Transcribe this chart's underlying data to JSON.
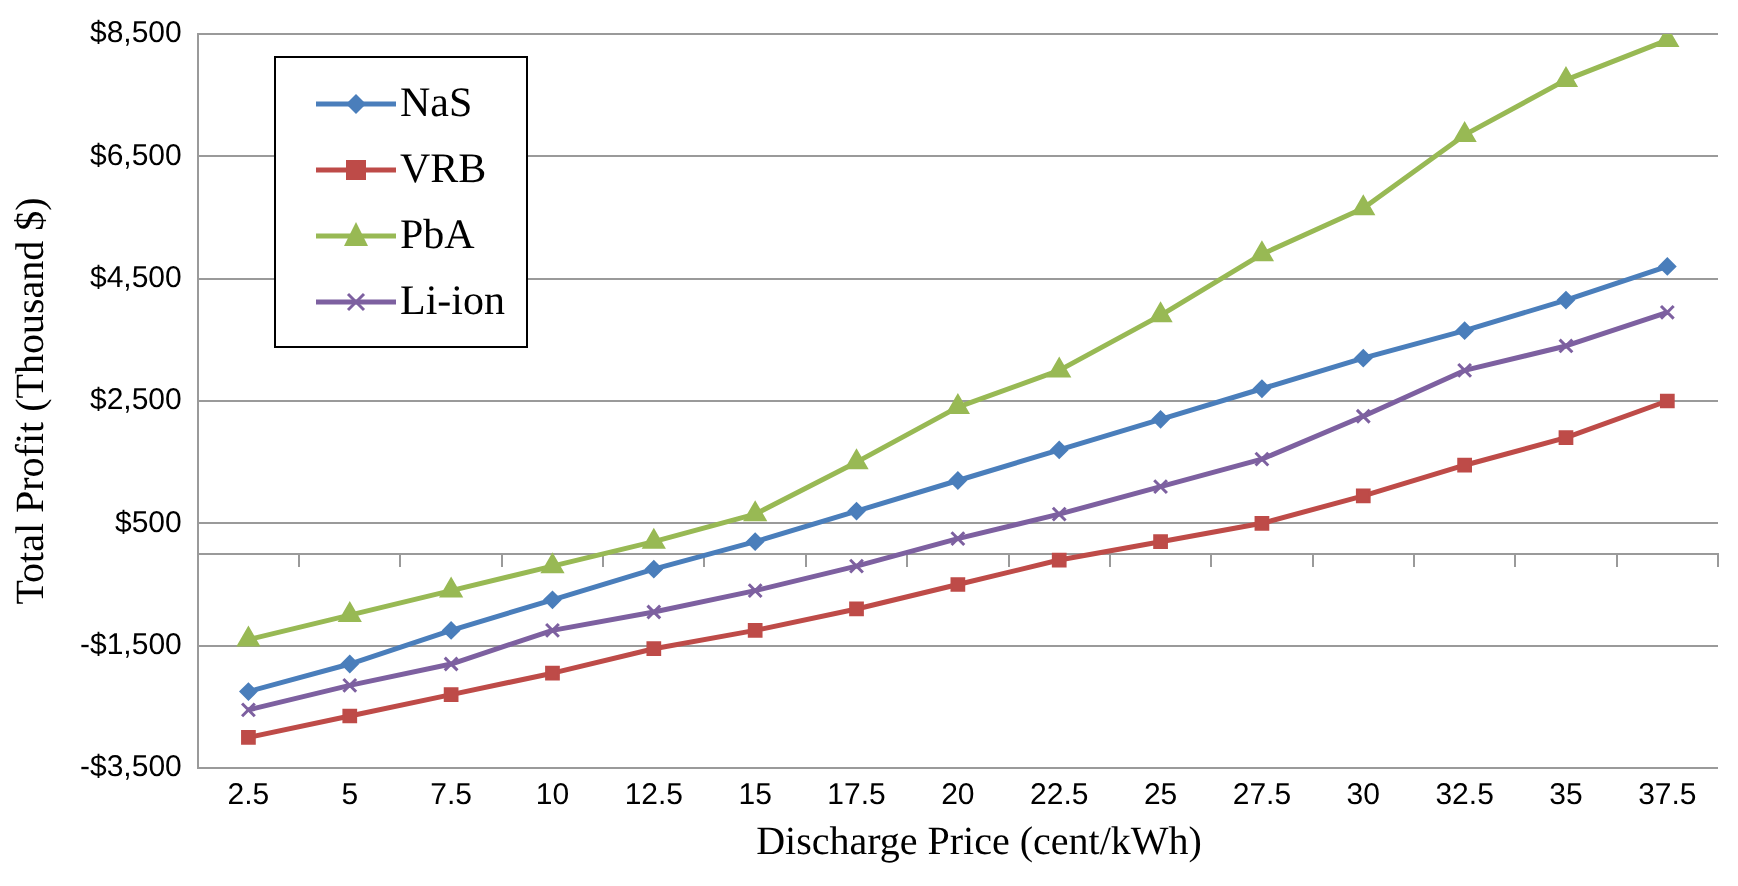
{
  "chart_data": {
    "type": "line",
    "xlabel": "Discharge Price (cent/kWh)",
    "ylabel": "Total Profit (Thousand $)",
    "categories": [
      "2.5",
      "5",
      "7.5",
      "10",
      "12.5",
      "15",
      "17.5",
      "20",
      "22.5",
      "25",
      "27.5",
      "30",
      "32.5",
      "35",
      "37.5"
    ],
    "series": [
      {
        "name": "NaS",
        "color": "#4a7ebb",
        "marker": "diamond",
        "values": [
          -2250,
          -1800,
          -1250,
          -750,
          -250,
          200,
          700,
          1200,
          1700,
          2200,
          2700,
          3200,
          3650,
          4150,
          4700
        ]
      },
      {
        "name": "VRB",
        "color": "#be4b48",
        "marker": "square",
        "values": [
          -3000,
          -2650,
          -2300,
          -1950,
          -1550,
          -1250,
          -900,
          -500,
          -100,
          200,
          500,
          950,
          1450,
          1900,
          2500
        ]
      },
      {
        "name": "PbA",
        "color": "#98b954",
        "marker": "triangle",
        "values": [
          -1400,
          -1000,
          -600,
          -200,
          200,
          650,
          1500,
          2400,
          3000,
          3900,
          4900,
          5650,
          6850,
          7750,
          8400
        ]
      },
      {
        "name": "Li-ion",
        "color": "#7d60a0",
        "marker": "cross",
        "values": [
          -2550,
          -2150,
          -1800,
          -1250,
          -950,
          -600,
          -200,
          250,
          650,
          1100,
          1550,
          2250,
          3000,
          3400,
          3950
        ]
      }
    ],
    "ylim": [
      -3500,
      8500
    ],
    "yticks": [
      {
        "value": -3500,
        "label": "-$3,500"
      },
      {
        "value": -1500,
        "label": "-$1,500"
      },
      {
        "value": 500,
        "label": "$500"
      },
      {
        "value": 2500,
        "label": "$2,500"
      },
      {
        "value": 4500,
        "label": "$4,500"
      },
      {
        "value": 6500,
        "label": "$6,500"
      },
      {
        "value": 8500,
        "label": "$8,500"
      }
    ],
    "grid": "y",
    "legend": "top left",
    "line_style": "solid"
  }
}
